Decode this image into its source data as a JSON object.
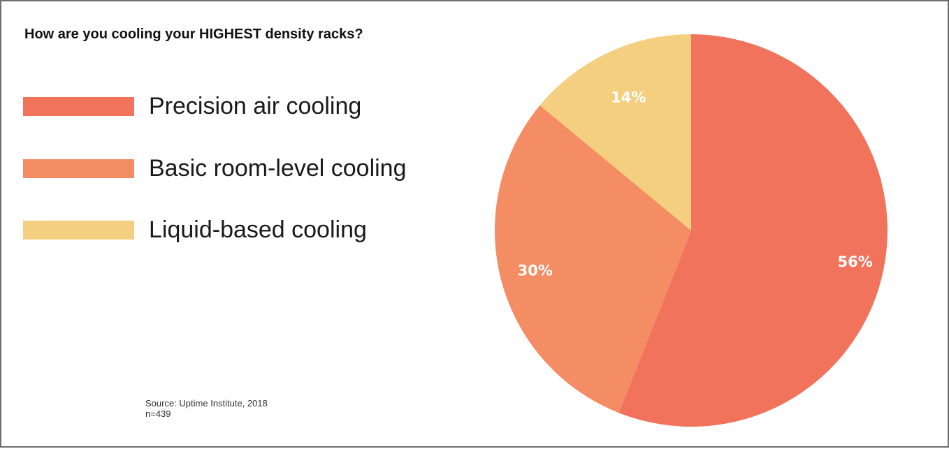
{
  "chart_data": {
    "type": "pie",
    "title": "How are you cooling your HIGHEST density racks?",
    "categories": [
      "Precision air cooling",
      "Basic room-level cooling",
      "Liquid-based cooling"
    ],
    "values": [
      56,
      30,
      14
    ],
    "value_labels": [
      "56%",
      "30%",
      "14%"
    ],
    "colors": [
      "#f1735c",
      "#f48d63",
      "#f3cf7f"
    ],
    "legend_position": "left",
    "start_angle_deg": 0,
    "direction": "clockwise",
    "source": "Source: Uptime Institute, 2018",
    "sample_size": "n=439"
  }
}
